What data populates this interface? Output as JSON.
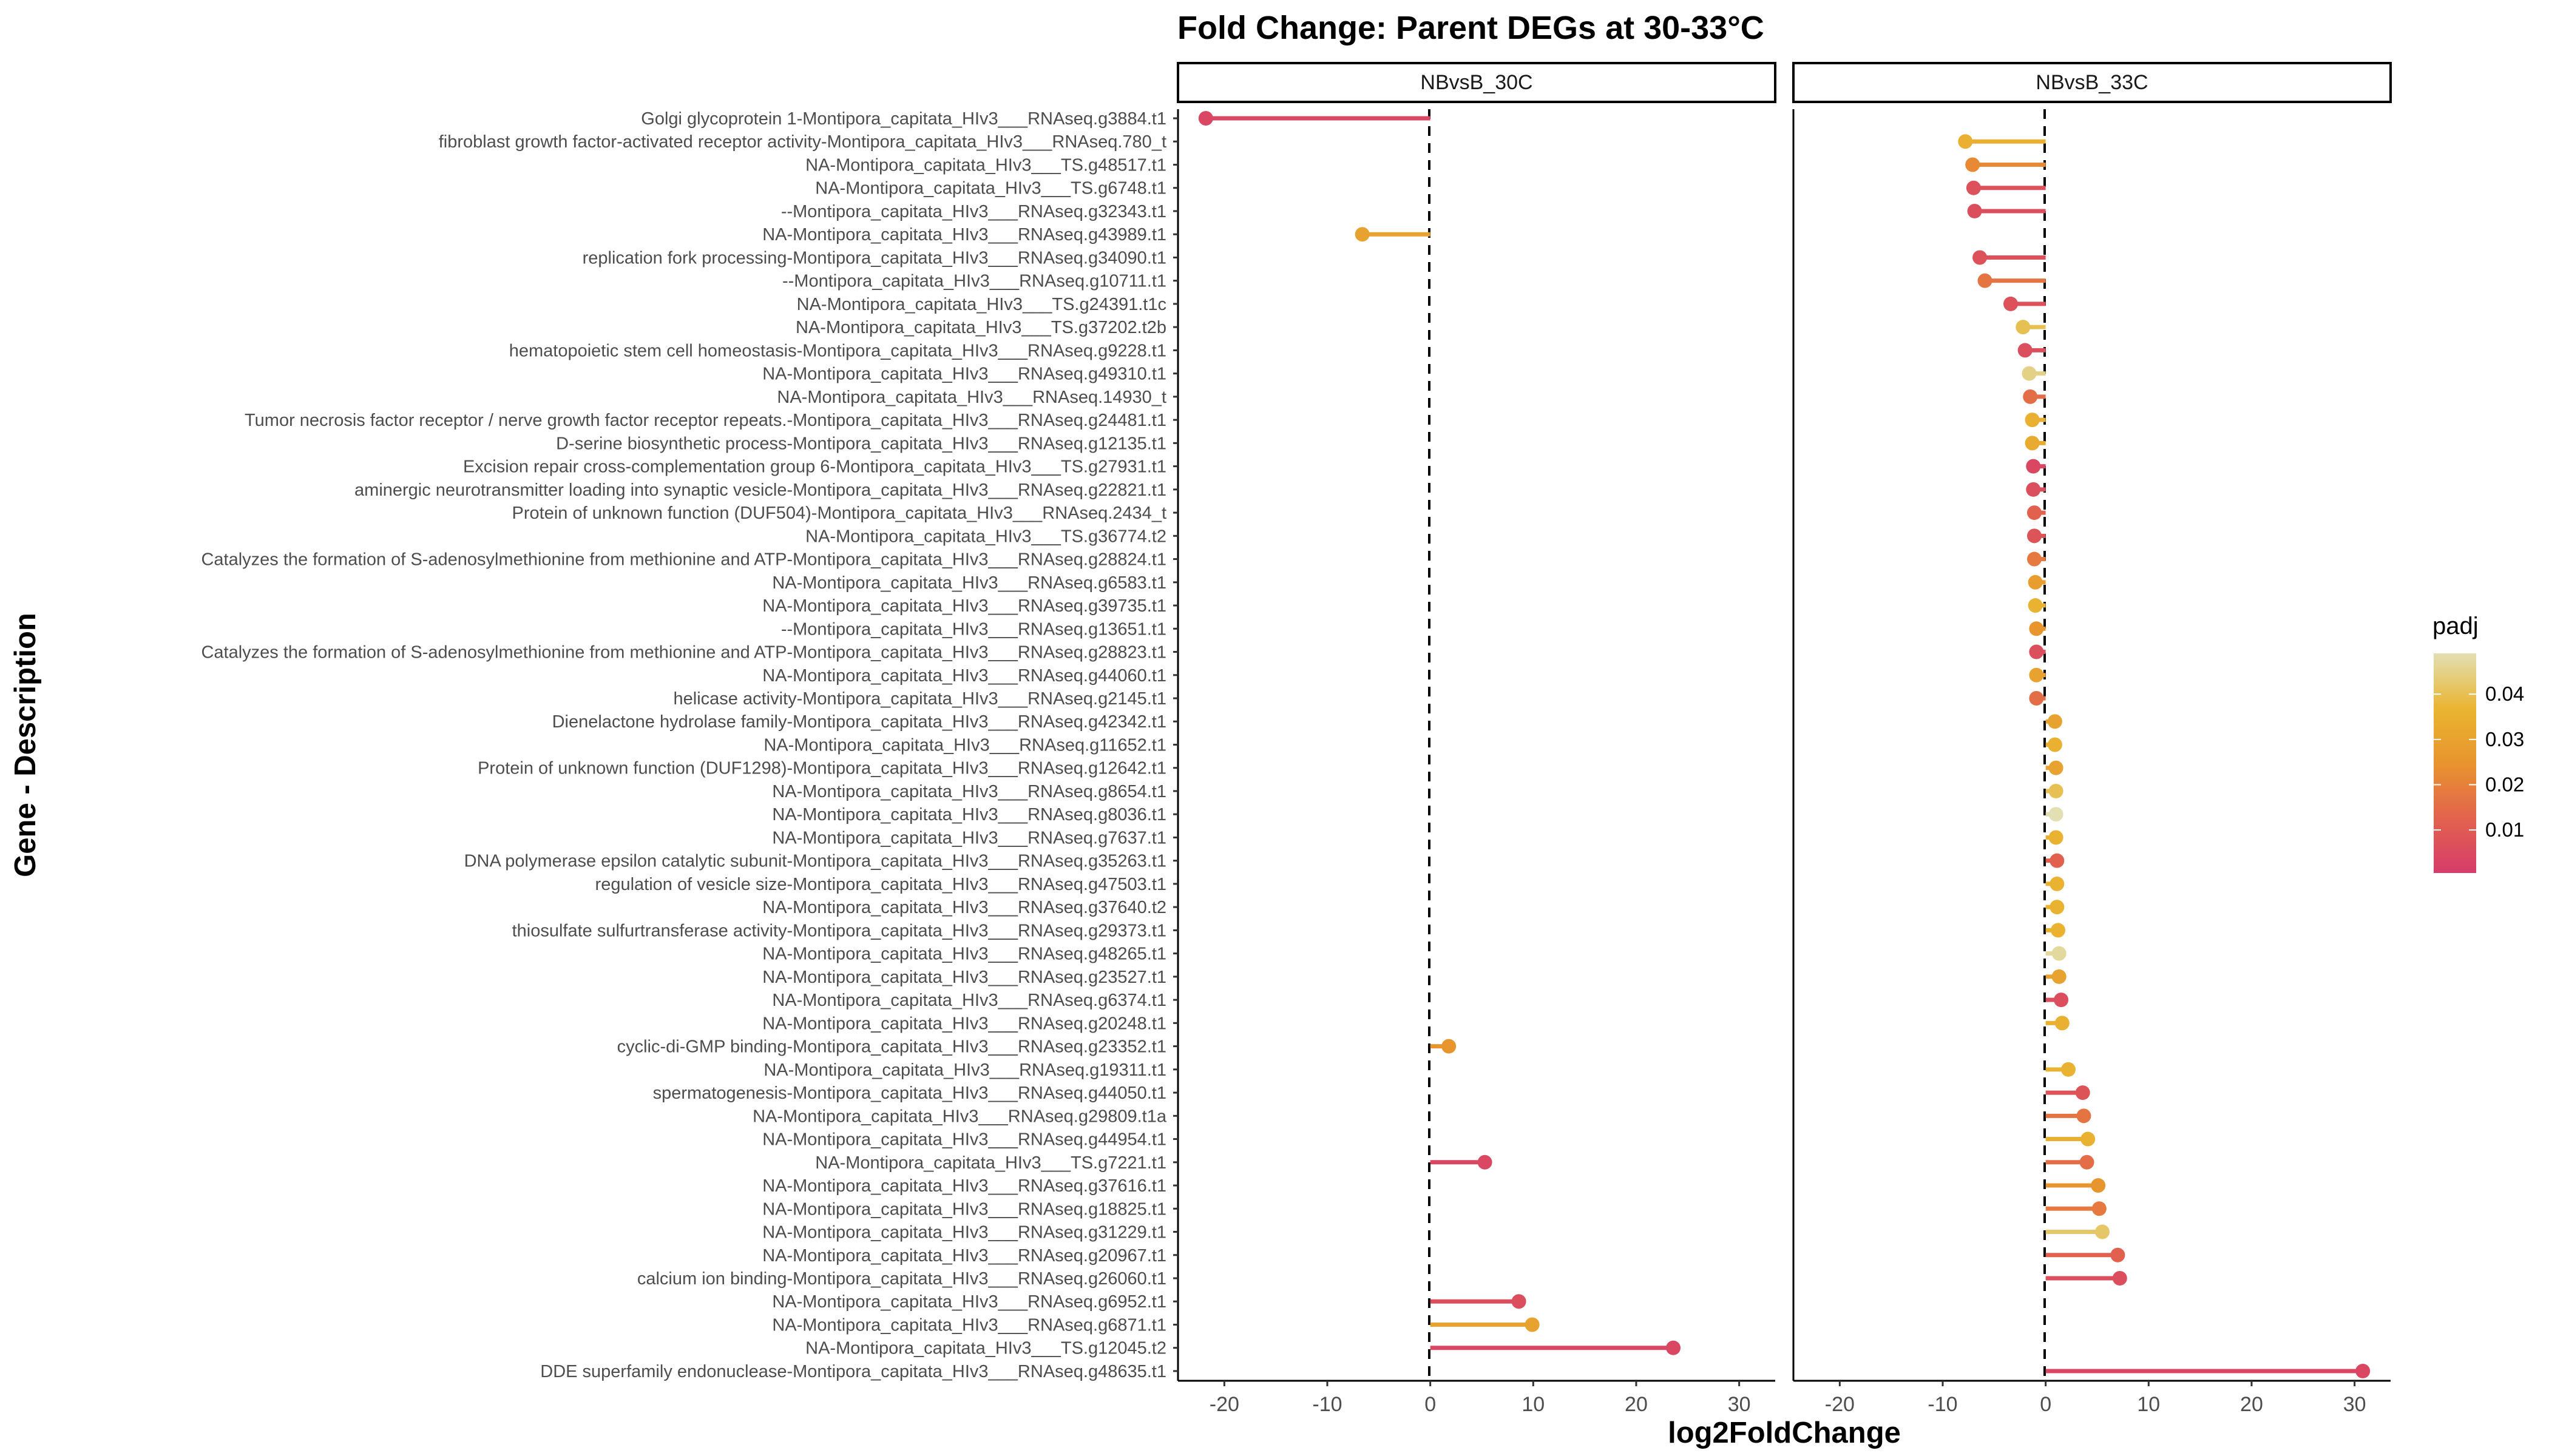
{
  "chart_data": {
    "type": "lollipop",
    "title": "Fold Change: Parent DEGs at 30-33°C",
    "xlabel": "log2FoldChange",
    "ylabel": "Gene - Description",
    "xlim": [
      -24.5,
      33.5
    ],
    "xticks": [
      -20,
      -10,
      0,
      10,
      20,
      30
    ],
    "reference_line": 0,
    "grid": false,
    "legend": {
      "title": "padj",
      "placement": "right",
      "ticks": [
        0.01,
        0.02,
        0.03,
        0.04
      ],
      "range": [
        0.0005,
        0.049
      ],
      "colors": [
        "#D63C6A",
        "#E2634D",
        "#E8942E",
        "#E9B531",
        "#E2DFB3"
      ]
    },
    "panels": [
      {
        "name": "NBvsB_30C"
      },
      {
        "name": "NBvsB_33C"
      }
    ],
    "genes": [
      "Golgi glycoprotein 1-Montipora_capitata_HIv3___RNAseq.g3884.t1",
      "fibroblast growth factor-activated receptor activity-Montipora_capitata_HIv3___RNAseq.780_t",
      "NA-Montipora_capitata_HIv3___TS.g48517.t1",
      "NA-Montipora_capitata_HIv3___TS.g6748.t1",
      "--Montipora_capitata_HIv3___RNAseq.g32343.t1",
      "NA-Montipora_capitata_HIv3___RNAseq.g43989.t1",
      "replication fork processing-Montipora_capitata_HIv3___RNAseq.g34090.t1",
      "--Montipora_capitata_HIv3___RNAseq.g10711.t1",
      "NA-Montipora_capitata_HIv3___TS.g24391.t1c",
      "NA-Montipora_capitata_HIv3___TS.g37202.t2b",
      "hematopoietic stem cell homeostasis-Montipora_capitata_HIv3___RNAseq.g9228.t1",
      "NA-Montipora_capitata_HIv3___RNAseq.g49310.t1",
      "NA-Montipora_capitata_HIv3___RNAseq.14930_t",
      "Tumor necrosis factor receptor / nerve growth factor receptor repeats.-Montipora_capitata_HIv3___RNAseq.g24481.t1",
      "D-serine biosynthetic process-Montipora_capitata_HIv3___RNAseq.g12135.t1",
      "Excision repair cross-complementation group 6-Montipora_capitata_HIv3___TS.g27931.t1",
      "aminergic neurotransmitter loading into synaptic vesicle-Montipora_capitata_HIv3___RNAseq.g22821.t1",
      "Protein of unknown function (DUF504)-Montipora_capitata_HIv3___RNAseq.2434_t",
      "NA-Montipora_capitata_HIv3___TS.g36774.t2",
      "Catalyzes the formation of S-adenosylmethionine from methionine and ATP-Montipora_capitata_HIv3___RNAseq.g28824.t1",
      "NA-Montipora_capitata_HIv3___RNAseq.g6583.t1",
      "NA-Montipora_capitata_HIv3___RNAseq.g39735.t1",
      "--Montipora_capitata_HIv3___RNAseq.g13651.t1",
      "Catalyzes the formation of S-adenosylmethionine from methionine and ATP-Montipora_capitata_HIv3___RNAseq.g28823.t1",
      "NA-Montipora_capitata_HIv3___RNAseq.g44060.t1",
      "helicase activity-Montipora_capitata_HIv3___RNAseq.g2145.t1",
      "Dienelactone hydrolase family-Montipora_capitata_HIv3___RNAseq.g42342.t1",
      "NA-Montipora_capitata_HIv3___RNAseq.g11652.t1",
      "Protein of unknown function (DUF1298)-Montipora_capitata_HIv3___RNAseq.g12642.t1",
      "NA-Montipora_capitata_HIv3___RNAseq.g8654.t1",
      "NA-Montipora_capitata_HIv3___RNAseq.g8036.t1",
      "NA-Montipora_capitata_HIv3___RNAseq.g7637.t1",
      "DNA polymerase epsilon catalytic subunit-Montipora_capitata_HIv3___RNAseq.g35263.t1",
      "regulation of vesicle size-Montipora_capitata_HIv3___RNAseq.g47503.t1",
      "NA-Montipora_capitata_HIv3___RNAseq.g37640.t2",
      "thiosulfate sulfurtransferase activity-Montipora_capitata_HIv3___RNAseq.g29373.t1",
      "NA-Montipora_capitata_HIv3___RNAseq.g48265.t1",
      "NA-Montipora_capitata_HIv3___RNAseq.g23527.t1",
      "NA-Montipora_capitata_HIv3___RNAseq.g6374.t1",
      "NA-Montipora_capitata_HIv3___RNAseq.g20248.t1",
      "cyclic-di-GMP binding-Montipora_capitata_HIv3___RNAseq.g23352.t1",
      "NA-Montipora_capitata_HIv3___RNAseq.g19311.t1",
      "spermatogenesis-Montipora_capitata_HIv3___RNAseq.g44050.t1",
      "NA-Montipora_capitata_HIv3___RNAseq.g29809.t1a",
      "NA-Montipora_capitata_HIv3___RNAseq.g44954.t1",
      "NA-Montipora_capitata_HIv3___TS.g7221.t1",
      "NA-Montipora_capitata_HIv3___RNAseq.g37616.t1",
      "NA-Montipora_capitata_HIv3___RNAseq.g18825.t1",
      "NA-Montipora_capitata_HIv3___RNAseq.g31229.t1",
      "NA-Montipora_capitata_HIv3___RNAseq.g20967.t1",
      "calcium ion binding-Montipora_capitata_HIv3___RNAseq.g26060.t1",
      "NA-Montipora_capitata_HIv3___RNAseq.g6952.t1",
      "NA-Montipora_capitata_HIv3___RNAseq.g6871.t1",
      "NA-Montipora_capitata_HIv3___TS.g12045.t2",
      "DDE superfamily endonuclease-Montipora_capitata_HIv3___RNAseq.g48635.t1"
    ],
    "points": [
      {
        "panel": 0,
        "gene": 0,
        "log2fc": -21.8,
        "padj": 0.004
      },
      {
        "panel": 0,
        "gene": 5,
        "log2fc": -6.6,
        "padj": 0.03
      },
      {
        "panel": 0,
        "gene": 40,
        "log2fc": 1.8,
        "padj": 0.025
      },
      {
        "panel": 0,
        "gene": 45,
        "log2fc": 5.3,
        "padj": 0.004
      },
      {
        "panel": 0,
        "gene": 51,
        "log2fc": 8.6,
        "padj": 0.006
      },
      {
        "panel": 0,
        "gene": 52,
        "log2fc": 9.9,
        "padj": 0.03
      },
      {
        "panel": 0,
        "gene": 53,
        "log2fc": 23.6,
        "padj": 0.004
      },
      {
        "panel": 1,
        "gene": 1,
        "log2fc": -7.8,
        "padj": 0.035
      },
      {
        "panel": 1,
        "gene": 2,
        "log2fc": -7.1,
        "padj": 0.022
      },
      {
        "panel": 1,
        "gene": 3,
        "log2fc": -7.0,
        "padj": 0.007
      },
      {
        "panel": 1,
        "gene": 4,
        "log2fc": -6.9,
        "padj": 0.006
      },
      {
        "panel": 1,
        "gene": 6,
        "log2fc": -6.4,
        "padj": 0.007
      },
      {
        "panel": 1,
        "gene": 7,
        "log2fc": -5.9,
        "padj": 0.017
      },
      {
        "panel": 1,
        "gene": 8,
        "log2fc": -3.4,
        "padj": 0.007
      },
      {
        "panel": 1,
        "gene": 9,
        "log2fc": -2.2,
        "padj": 0.04
      },
      {
        "panel": 1,
        "gene": 10,
        "log2fc": -2.0,
        "padj": 0.006
      },
      {
        "panel": 1,
        "gene": 11,
        "log2fc": -1.6,
        "padj": 0.045
      },
      {
        "panel": 1,
        "gene": 12,
        "log2fc": -1.5,
        "padj": 0.015
      },
      {
        "panel": 1,
        "gene": 13,
        "log2fc": -1.3,
        "padj": 0.035
      },
      {
        "panel": 1,
        "gene": 14,
        "log2fc": -1.3,
        "padj": 0.033
      },
      {
        "panel": 1,
        "gene": 15,
        "log2fc": -1.2,
        "padj": 0.004
      },
      {
        "panel": 1,
        "gene": 16,
        "log2fc": -1.2,
        "padj": 0.006
      },
      {
        "panel": 1,
        "gene": 17,
        "log2fc": -1.1,
        "padj": 0.012
      },
      {
        "panel": 1,
        "gene": 18,
        "log2fc": -1.1,
        "padj": 0.008
      },
      {
        "panel": 1,
        "gene": 19,
        "log2fc": -1.1,
        "padj": 0.018
      },
      {
        "panel": 1,
        "gene": 20,
        "log2fc": -1.0,
        "padj": 0.028
      },
      {
        "panel": 1,
        "gene": 21,
        "log2fc": -1.0,
        "padj": 0.036
      },
      {
        "panel": 1,
        "gene": 22,
        "log2fc": -0.9,
        "padj": 0.025
      },
      {
        "panel": 1,
        "gene": 23,
        "log2fc": -0.9,
        "padj": 0.006
      },
      {
        "panel": 1,
        "gene": 24,
        "log2fc": -0.9,
        "padj": 0.03
      },
      {
        "panel": 1,
        "gene": 25,
        "log2fc": -0.9,
        "padj": 0.015
      },
      {
        "panel": 1,
        "gene": 26,
        "log2fc": 0.9,
        "padj": 0.03
      },
      {
        "panel": 1,
        "gene": 27,
        "log2fc": 0.9,
        "padj": 0.035
      },
      {
        "panel": 1,
        "gene": 28,
        "log2fc": 1.0,
        "padj": 0.03
      },
      {
        "panel": 1,
        "gene": 29,
        "log2fc": 1.0,
        "padj": 0.04
      },
      {
        "panel": 1,
        "gene": 30,
        "log2fc": 1.0,
        "padj": 0.049
      },
      {
        "panel": 1,
        "gene": 31,
        "log2fc": 1.0,
        "padj": 0.036
      },
      {
        "panel": 1,
        "gene": 32,
        "log2fc": 1.1,
        "padj": 0.012
      },
      {
        "panel": 1,
        "gene": 33,
        "log2fc": 1.1,
        "padj": 0.036
      },
      {
        "panel": 1,
        "gene": 34,
        "log2fc": 1.1,
        "padj": 0.036
      },
      {
        "panel": 1,
        "gene": 35,
        "log2fc": 1.2,
        "padj": 0.036
      },
      {
        "panel": 1,
        "gene": 36,
        "log2fc": 1.3,
        "padj": 0.047
      },
      {
        "panel": 1,
        "gene": 37,
        "log2fc": 1.3,
        "padj": 0.03
      },
      {
        "panel": 1,
        "gene": 38,
        "log2fc": 1.5,
        "padj": 0.006
      },
      {
        "panel": 1,
        "gene": 39,
        "log2fc": 1.6,
        "padj": 0.035
      },
      {
        "panel": 1,
        "gene": 41,
        "log2fc": 2.2,
        "padj": 0.036
      },
      {
        "panel": 1,
        "gene": 42,
        "log2fc": 3.6,
        "padj": 0.008
      },
      {
        "panel": 1,
        "gene": 43,
        "log2fc": 3.7,
        "padj": 0.017
      },
      {
        "panel": 1,
        "gene": 44,
        "log2fc": 4.1,
        "padj": 0.035
      },
      {
        "panel": 1,
        "gene": 45,
        "log2fc": 4.0,
        "padj": 0.015
      },
      {
        "panel": 1,
        "gene": 46,
        "log2fc": 5.1,
        "padj": 0.025
      },
      {
        "panel": 1,
        "gene": 47,
        "log2fc": 5.2,
        "padj": 0.018
      },
      {
        "panel": 1,
        "gene": 48,
        "log2fc": 5.5,
        "padj": 0.042
      },
      {
        "panel": 1,
        "gene": 49,
        "log2fc": 7.0,
        "padj": 0.012
      },
      {
        "panel": 1,
        "gene": 50,
        "log2fc": 7.2,
        "padj": 0.006
      },
      {
        "panel": 1,
        "gene": 54,
        "log2fc": 30.8,
        "padj": 0.004
      }
    ]
  }
}
